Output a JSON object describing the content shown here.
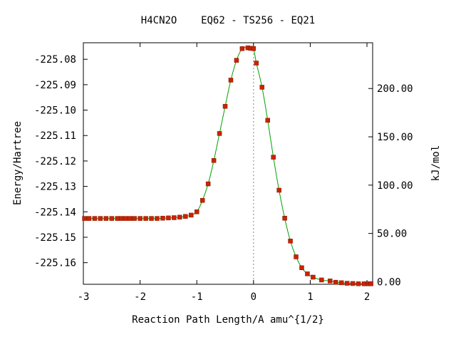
{
  "chart_data": {
    "type": "line",
    "title": "H4CN2O    EQ62 - TS256 - EQ21",
    "xlabel": "Reaction Path Length/A amu^{1/2}",
    "ylabel": "Energy/Hartree",
    "y2label": "kJ/mol",
    "xlim": [
      -3.0,
      2.1
    ],
    "ylim": [
      -225.1685,
      -225.0735
    ],
    "xticks": [
      -3,
      -2,
      -1,
      0,
      1,
      2
    ],
    "xtick_labels": [
      "-3",
      "-2",
      "-1",
      "0",
      "1",
      "2"
    ],
    "yticks": [
      -225.08,
      -225.09,
      -225.1,
      -225.11,
      -225.12,
      -225.13,
      -225.14,
      -225.15,
      -225.16
    ],
    "ytick_labels": [
      "-225.08",
      "-225.09",
      "-225.10",
      "-225.11",
      "-225.12",
      "-225.13",
      "-225.14",
      "-225.15",
      "-225.16"
    ],
    "y2ticks_hartree": [
      -225.0915,
      -225.1105,
      -225.1295,
      -225.1485,
      -225.1675
    ],
    "y2tick_labels": [
      "200.00",
      "150.00",
      "100.00",
      "50.00",
      "0.00"
    ],
    "ts_x": 0.0,
    "grid": false,
    "series": [
      {
        "color": "#00a000",
        "marker_color": "#cc2200",
        "x": [
          -2.98,
          -2.9,
          -2.8,
          -2.7,
          -2.6,
          -2.5,
          -2.4,
          -2.33,
          -2.26,
          -2.18,
          -2.1,
          -2.0,
          -1.9,
          -1.8,
          -1.7,
          -1.6,
          -1.5,
          -1.4,
          -1.3,
          -1.2,
          -1.1,
          -1.0,
          -0.9,
          -0.8,
          -0.7,
          -0.6,
          -0.5,
          -0.4,
          -0.3,
          -0.2,
          -0.1,
          -0.05,
          0.0,
          0.05,
          0.15,
          0.25,
          0.35,
          0.45,
          0.55,
          0.65,
          0.75,
          0.85,
          0.95,
          1.05,
          1.2,
          1.35,
          1.45,
          1.55,
          1.65,
          1.75,
          1.85,
          1.95,
          2.03,
          2.07
        ],
        "y": [
          -225.1426,
          -225.1426,
          -225.1426,
          -225.1426,
          -225.1426,
          -225.1426,
          -225.1426,
          -225.1426,
          -225.1426,
          -225.1426,
          -225.1426,
          -225.1426,
          -225.1426,
          -225.1426,
          -225.1426,
          -225.1425,
          -225.1424,
          -225.1423,
          -225.1421,
          -225.1418,
          -225.1413,
          -225.14,
          -225.1355,
          -225.129,
          -225.1198,
          -225.1092,
          -225.0985,
          -225.0882,
          -225.0804,
          -225.0758,
          -225.0755,
          -225.0757,
          -225.0758,
          -225.0815,
          -225.091,
          -225.104,
          -225.1185,
          -225.1315,
          -225.1425,
          -225.1515,
          -225.1577,
          -225.162,
          -225.1644,
          -225.1657,
          -225.1668,
          -225.1672,
          -225.1677,
          -225.1679,
          -225.1681,
          -225.1682,
          -225.1683,
          -225.1683,
          -225.1683,
          -225.1683
        ]
      }
    ]
  }
}
